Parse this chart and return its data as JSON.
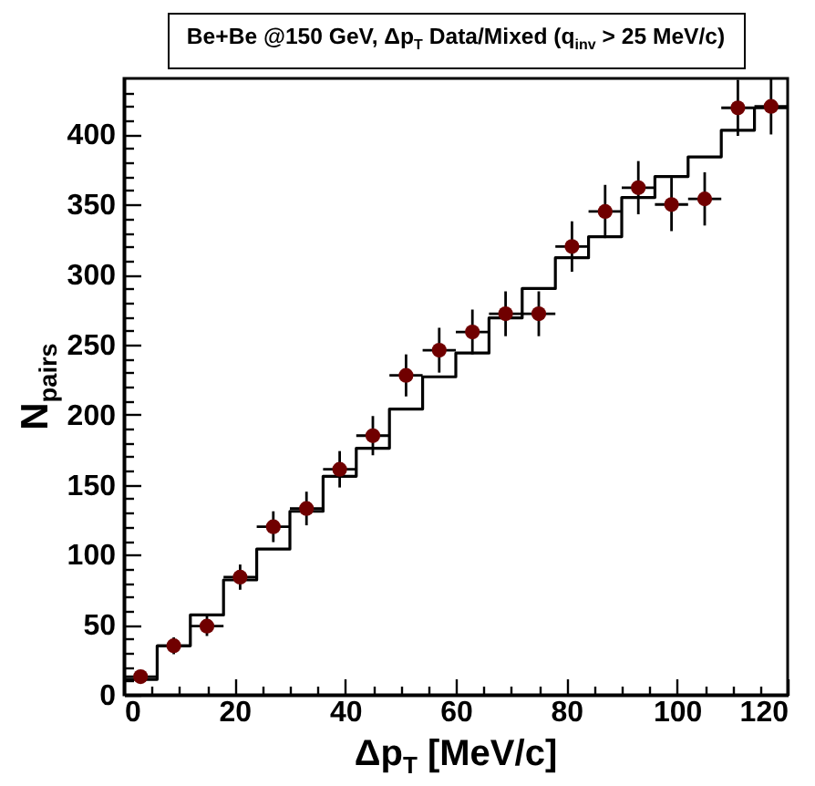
{
  "chart_data": {
    "type": "histogram",
    "title": "Be+Be @150 GeV, Δp$_{T}$ Data/Mixed (q$_{inv}$ > 25 MeV/c)",
    "xlabel": "Δp$_{T}$ [MeV/c]",
    "ylabel": "N$_{pairs}$",
    "bins": [
      0,
      6,
      12,
      18,
      24,
      30,
      36,
      42,
      48,
      54,
      60,
      66,
      72,
      78,
      84,
      90,
      96,
      102,
      108,
      114,
      120
    ],
    "series": [
      {
        "color": "#000000",
        "values": [
          11,
          35,
          57,
          82,
          104,
          131,
          156,
          176,
          204,
          227,
          244,
          269,
          290,
          312,
          327,
          355,
          370,
          384,
          403,
          419
        ]
      },
      {
        "type": "scatter",
        "color": "#700000",
        "x": [
          3,
          9,
          15,
          21,
          27,
          33,
          39,
          45,
          51,
          57,
          63,
          69,
          75,
          81,
          87,
          93,
          99,
          105,
          111,
          117
        ],
        "values": [
          13,
          35,
          49,
          84,
          120,
          133,
          161,
          185,
          228,
          246,
          259,
          272,
          272,
          320,
          345,
          362,
          350,
          354,
          419,
          420
        ],
        "errors": [
          null,
          6,
          7,
          9,
          11,
          12,
          13,
          14,
          15,
          16,
          16,
          16,
          16,
          18,
          19,
          19,
          19,
          19,
          20,
          20
        ],
        "xerrors": [
          3,
          3,
          3,
          3,
          3,
          3,
          3,
          3,
          3,
          3,
          3,
          3,
          3,
          3,
          3,
          3,
          3,
          3,
          3,
          3
        ]
      }
    ],
    "marker": "circle",
    "grid": false,
    "xlim": [
      0,
      120
    ],
    "ylim": [
      0,
      440
    ],
    "xticks": [
      0,
      {
        "value": 5,
        "label": null
      },
      {
        "value": 10,
        "label": null
      },
      {
        "value": 15,
        "label": null
      },
      20,
      {
        "value": 25,
        "label": null
      },
      {
        "value": 30,
        "label": null
      },
      {
        "value": 35,
        "label": null
      },
      40,
      {
        "value": 45,
        "label": null
      },
      {
        "value": 50,
        "label": null
      },
      {
        "value": 55,
        "label": null
      },
      60,
      {
        "value": 65,
        "label": null
      },
      {
        "value": 70,
        "label": null
      },
      {
        "value": 75,
        "label": null
      },
      80,
      {
        "value": 85,
        "label": null
      },
      {
        "value": 90,
        "label": null
      },
      {
        "value": 95,
        "label": null
      },
      100,
      {
        "value": 105,
        "label": null
      },
      {
        "value": 110,
        "label": null
      },
      {
        "value": 115,
        "label": null
      },
      120
    ],
    "yticks": [
      0,
      {
        "value": 10,
        "label": null
      },
      {
        "value": 20,
        "label": null
      },
      {
        "value": 30,
        "label": null
      },
      {
        "value": 40,
        "label": null
      },
      50,
      {
        "value": 60,
        "label": null
      },
      {
        "value": 70,
        "label": null
      },
      {
        "value": 80,
        "label": null
      },
      {
        "value": 90,
        "label": null
      },
      100,
      {
        "value": 110,
        "label": null
      },
      {
        "value": 120,
        "label": null
      },
      {
        "value": 130,
        "label": null
      },
      {
        "value": 140,
        "label": null
      },
      150,
      {
        "value": 160,
        "label": null
      },
      {
        "value": 170,
        "label": null
      },
      {
        "value": 180,
        "label": null
      },
      {
        "value": 190,
        "label": null
      },
      200,
      {
        "value": 210,
        "label": null
      },
      {
        "value": 220,
        "label": null
      },
      {
        "value": 230,
        "label": null
      },
      {
        "value": 240,
        "label": null
      },
      250,
      {
        "value": 260,
        "label": null
      },
      {
        "value": 270,
        "label": null
      },
      {
        "value": 280,
        "label": null
      },
      {
        "value": 290,
        "label": null
      },
      300,
      {
        "value": 310,
        "label": null
      },
      {
        "value": 320,
        "label": null
      },
      {
        "value": 330,
        "label": null
      },
      {
        "value": 340,
        "label": null
      },
      350,
      {
        "value": 360,
        "label": null
      },
      {
        "value": 370,
        "label": null
      },
      {
        "value": 380,
        "label": null
      },
      {
        "value": 390,
        "label": null
      },
      400,
      {
        "value": 410,
        "label": null
      },
      {
        "value": 420,
        "label": null
      },
      {
        "value": 430,
        "label": null
      }
    ]
  }
}
